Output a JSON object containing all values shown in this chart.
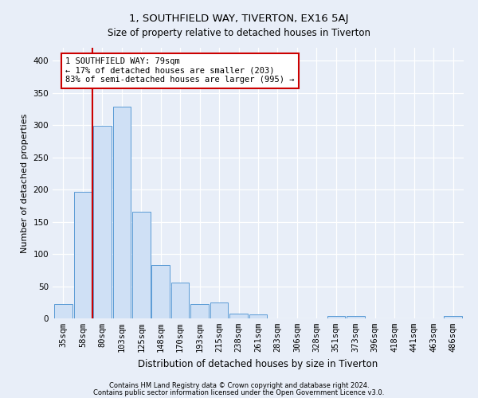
{
  "title1": "1, SOUTHFIELD WAY, TIVERTON, EX16 5AJ",
  "title2": "Size of property relative to detached houses in Tiverton",
  "xlabel": "Distribution of detached houses by size in Tiverton",
  "ylabel": "Number of detached properties",
  "categories": [
    "35sqm",
    "58sqm",
    "80sqm",
    "103sqm",
    "125sqm",
    "148sqm",
    "170sqm",
    "193sqm",
    "215sqm",
    "238sqm",
    "261sqm",
    "283sqm",
    "306sqm",
    "328sqm",
    "351sqm",
    "373sqm",
    "396sqm",
    "418sqm",
    "441sqm",
    "463sqm",
    "486sqm"
  ],
  "values": [
    22,
    197,
    299,
    328,
    166,
    83,
    56,
    22,
    25,
    7,
    6,
    0,
    0,
    0,
    4,
    4,
    0,
    0,
    0,
    0,
    4
  ],
  "bar_color": "#cfe0f5",
  "bar_edge_color": "#5b9bd5",
  "redline_color": "#cc0000",
  "redline_index": 1.5,
  "annotation_text": "1 SOUTHFIELD WAY: 79sqm\n← 17% of detached houses are smaller (203)\n83% of semi-detached houses are larger (995) →",
  "annotation_box_color": "white",
  "annotation_box_edge": "#cc0000",
  "footer1": "Contains HM Land Registry data © Crown copyright and database right 2024.",
  "footer2": "Contains public sector information licensed under the Open Government Licence v3.0.",
  "bg_color": "#e8eef8",
  "ylim": [
    0,
    420
  ],
  "yticks": [
    0,
    50,
    100,
    150,
    200,
    250,
    300,
    350,
    400
  ]
}
